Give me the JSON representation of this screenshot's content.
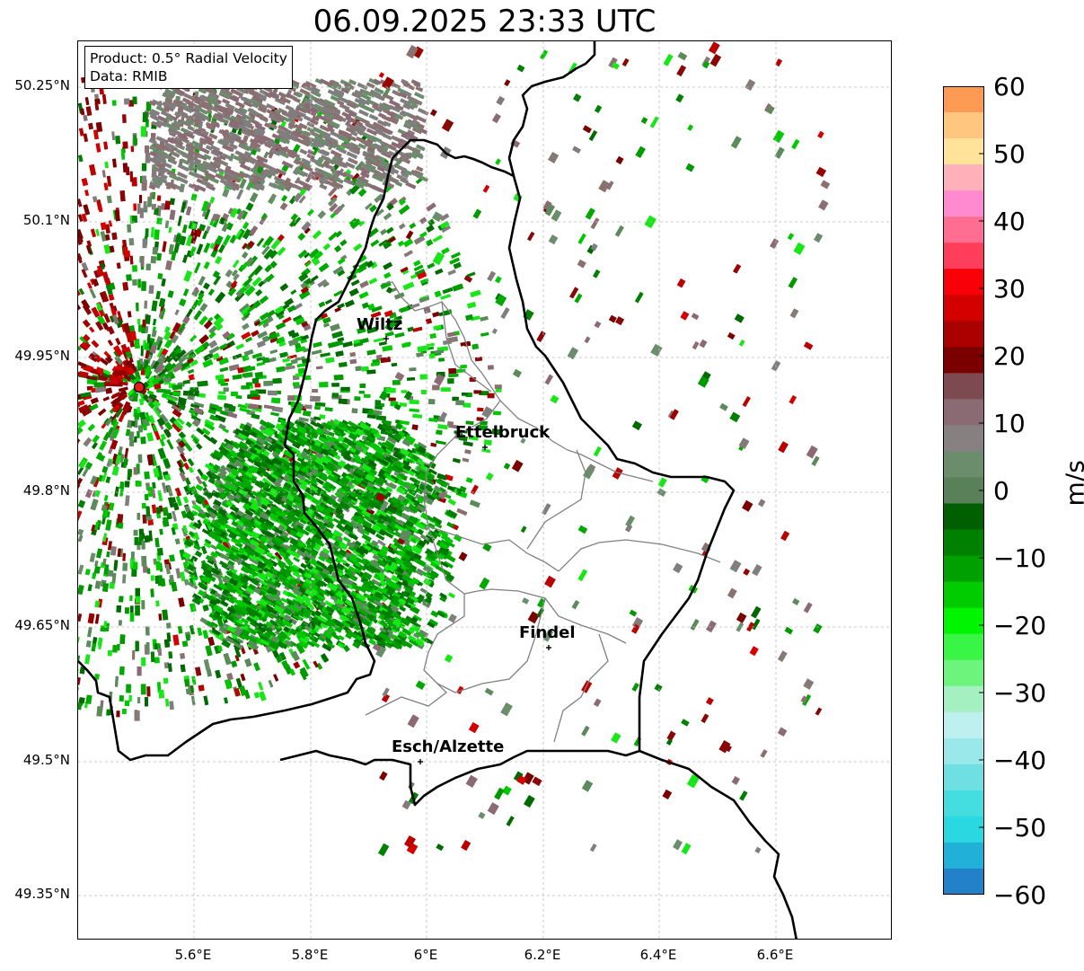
{
  "title": "06.09.2025 23:33 UTC",
  "info": {
    "product": "Product: 0.5° Radial Velocity",
    "data": "Data: RMIB"
  },
  "map": {
    "lat_ticks": [
      "50.25°N",
      "50.1°N",
      "49.95°N",
      "49.8°N",
      "49.65°N",
      "49.5°N",
      "49.35°N"
    ],
    "lon_ticks": [
      "5.6°E",
      "5.8°E",
      "6°E",
      "6.2°E",
      "6.4°E",
      "6.6°E"
    ],
    "cities": [
      "Wiltz",
      "Ettelbruck",
      "Findel",
      "Esch/Alzette"
    ],
    "radar_site_color": "#e41a1c"
  },
  "colorbar": {
    "label": "m/s",
    "ticks": [
      "60",
      "50",
      "40",
      "30",
      "20",
      "10",
      "0",
      "−10",
      "−20",
      "−30",
      "−40",
      "−50",
      "−60"
    ],
    "colors_top_to_bottom": [
      "#ff9a55",
      "#ffc680",
      "#ffe39b",
      "#ffb0b8",
      "#ff8ad0",
      "#ff6e91",
      "#ff3e5c",
      "#f90008",
      "#d40000",
      "#aa0000",
      "#7a0000",
      "#7e4a52",
      "#8a6b74",
      "#868080",
      "#6b8d6c",
      "#5a8059",
      "#006000",
      "#008000",
      "#00a000",
      "#00cc00",
      "#00f500",
      "#39f545",
      "#6cf47c",
      "#a5f0c0",
      "#bff0f0",
      "#9be8ea",
      "#6ee0e4",
      "#44dde0",
      "#29d8e0",
      "#20b0d8",
      "#2281c8"
    ]
  }
}
